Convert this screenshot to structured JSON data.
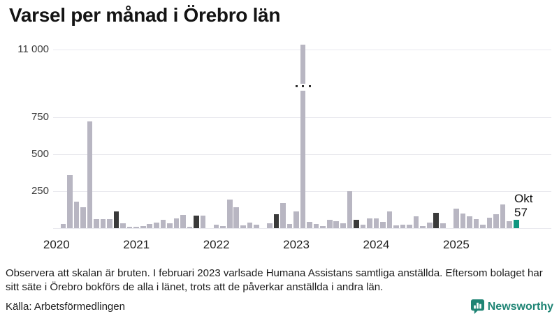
{
  "title": "Varsel per månad i Örebro län",
  "chart_data": {
    "type": "bar",
    "title": "Varsel per månad i Örebro län",
    "xlabel": "",
    "ylabel": "",
    "broken_axis": true,
    "grid": true,
    "y_ticks": [
      {
        "label": "11 000",
        "value": 11000
      },
      {
        "label": "750",
        "value": 750
      },
      {
        "label": "500",
        "value": 500
      },
      {
        "label": "250",
        "value": 250
      }
    ],
    "year_labels": [
      "2020",
      "2021",
      "2022",
      "2023",
      "2024",
      "2025"
    ],
    "annotation": {
      "month": "Okt",
      "value": "57"
    },
    "points": [
      {
        "year": 2020,
        "month": "jan",
        "value": 0
      },
      {
        "year": 2020,
        "month": "feb",
        "value": 28
      },
      {
        "year": 2020,
        "month": "mar",
        "value": 359
      },
      {
        "year": 2020,
        "month": "apr",
        "value": 178
      },
      {
        "year": 2020,
        "month": "maj",
        "value": 139
      },
      {
        "year": 2020,
        "month": "jun",
        "value": 720
      },
      {
        "year": 2020,
        "month": "jul",
        "value": 63
      },
      {
        "year": 2020,
        "month": "aug",
        "value": 63
      },
      {
        "year": 2020,
        "month": "sep",
        "value": 63
      },
      {
        "year": 2020,
        "month": "okt",
        "value": 115
      },
      {
        "year": 2020,
        "month": "nov",
        "value": 33
      },
      {
        "year": 2020,
        "month": "dec",
        "value": 9
      },
      {
        "year": 2021,
        "month": "jan",
        "value": 9
      },
      {
        "year": 2021,
        "month": "feb",
        "value": 15
      },
      {
        "year": 2021,
        "month": "mar",
        "value": 27
      },
      {
        "year": 2021,
        "month": "apr",
        "value": 38
      },
      {
        "year": 2021,
        "month": "maj",
        "value": 55
      },
      {
        "year": 2021,
        "month": "jun",
        "value": 33
      },
      {
        "year": 2021,
        "month": "jul",
        "value": 64
      },
      {
        "year": 2021,
        "month": "aug",
        "value": 88
      },
      {
        "year": 2021,
        "month": "sep",
        "value": 9
      },
      {
        "year": 2021,
        "month": "okt",
        "value": 83
      },
      {
        "year": 2021,
        "month": "nov",
        "value": 83
      },
      {
        "year": 2021,
        "month": "dec",
        "value": 0
      },
      {
        "year": 2022,
        "month": "jan",
        "value": 24
      },
      {
        "year": 2022,
        "month": "feb",
        "value": 14
      },
      {
        "year": 2022,
        "month": "mar",
        "value": 195
      },
      {
        "year": 2022,
        "month": "apr",
        "value": 143
      },
      {
        "year": 2022,
        "month": "maj",
        "value": 19
      },
      {
        "year": 2022,
        "month": "jun",
        "value": 38
      },
      {
        "year": 2022,
        "month": "jul",
        "value": 24
      },
      {
        "year": 2022,
        "month": "aug",
        "value": 0
      },
      {
        "year": 2022,
        "month": "sep",
        "value": 32
      },
      {
        "year": 2022,
        "month": "okt",
        "value": 93
      },
      {
        "year": 2022,
        "month": "nov",
        "value": 170
      },
      {
        "year": 2022,
        "month": "dec",
        "value": 28
      },
      {
        "year": 2023,
        "month": "jan",
        "value": 115
      },
      {
        "year": 2023,
        "month": "feb",
        "value": 11000
      },
      {
        "year": 2023,
        "month": "mar",
        "value": 41
      },
      {
        "year": 2023,
        "month": "apr",
        "value": 27
      },
      {
        "year": 2023,
        "month": "maj",
        "value": 14
      },
      {
        "year": 2023,
        "month": "jun",
        "value": 57
      },
      {
        "year": 2023,
        "month": "jul",
        "value": 45
      },
      {
        "year": 2023,
        "month": "aug",
        "value": 32
      },
      {
        "year": 2023,
        "month": "sep",
        "value": 250
      },
      {
        "year": 2023,
        "month": "okt",
        "value": 55
      },
      {
        "year": 2023,
        "month": "nov",
        "value": 23
      },
      {
        "year": 2023,
        "month": "dec",
        "value": 66
      },
      {
        "year": 2024,
        "month": "jan",
        "value": 68
      },
      {
        "year": 2024,
        "month": "feb",
        "value": 44
      },
      {
        "year": 2024,
        "month": "mar",
        "value": 111
      },
      {
        "year": 2024,
        "month": "apr",
        "value": 20
      },
      {
        "year": 2024,
        "month": "maj",
        "value": 24
      },
      {
        "year": 2024,
        "month": "jun",
        "value": 24
      },
      {
        "year": 2024,
        "month": "jul",
        "value": 80
      },
      {
        "year": 2024,
        "month": "aug",
        "value": 15
      },
      {
        "year": 2024,
        "month": "sep",
        "value": 39
      },
      {
        "year": 2024,
        "month": "okt",
        "value": 105
      },
      {
        "year": 2024,
        "month": "nov",
        "value": 31
      },
      {
        "year": 2024,
        "month": "dec",
        "value": 0
      },
      {
        "year": 2025,
        "month": "jan",
        "value": 130
      },
      {
        "year": 2025,
        "month": "feb",
        "value": 100
      },
      {
        "year": 2025,
        "month": "mar",
        "value": 78
      },
      {
        "year": 2025,
        "month": "apr",
        "value": 62
      },
      {
        "year": 2025,
        "month": "maj",
        "value": 25
      },
      {
        "year": 2025,
        "month": "jun",
        "value": 70
      },
      {
        "year": 2025,
        "month": "jul",
        "value": 93
      },
      {
        "year": 2025,
        "month": "aug",
        "value": 160
      },
      {
        "year": 2025,
        "month": "sep",
        "value": 45
      },
      {
        "year": 2025,
        "month": "okt",
        "value": 57
      }
    ]
  },
  "colors": {
    "bar": "#b8b6c2",
    "october_bar": "#3a3a3a",
    "current_bar": "#0f9680",
    "gridline": "#e9e9ee",
    "brand_teal": "#1e8474"
  },
  "footer": {
    "note_lines": [
      "Observera att skalan är bruten. I februari 2023 varlsade Humana Assistans samtliga anställda. Eftersom bolaget har",
      "sitt säte i Örebro bokförs de alla i länet, trots att de påverkar anställda i andra län."
    ],
    "source": "Källa: Arbetsförmedlingen"
  },
  "branding": {
    "label": "Newsworthy"
  }
}
